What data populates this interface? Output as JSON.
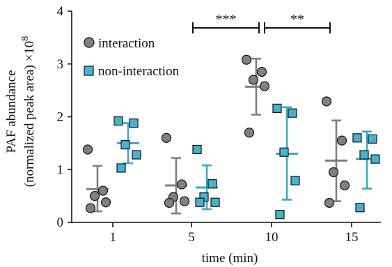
{
  "chart_data": {
    "type": "scatter",
    "xlabel": "time (min)",
    "ylabel_line1": "PAF abundance",
    "ylabel_line2": "(normalized peak area) ×10",
    "ylabel_exponent": "8",
    "ylim": [
      0,
      4
    ],
    "yticks": [
      "0",
      "1",
      "2",
      "3",
      "4"
    ],
    "categories": [
      "1",
      "5",
      "10",
      "15"
    ],
    "grid": false,
    "legend_position": "top-left",
    "colors": {
      "interaction": "#808080",
      "non_interaction": "#46b3cc",
      "error_interaction": "#7f7f7f",
      "error_non_interaction": "#3aa9c4"
    },
    "series": [
      {
        "name": "interaction",
        "marker": "circle",
        "groups": [
          {
            "category": "1",
            "mean": 0.63,
            "sd_low": 0.21,
            "sd_high": 1.07,
            "points": [
              1.38,
              0.6,
              0.5,
              0.38,
              0.27
            ]
          },
          {
            "category": "5",
            "mean": 0.7,
            "sd_low": 0.17,
            "sd_high": 1.22,
            "points": [
              1.6,
              0.72,
              0.48,
              0.4,
              0.37
            ]
          },
          {
            "category": "10",
            "mean": 2.57,
            "sd_low": 2.04,
            "sd_high": 3.1,
            "points": [
              3.08,
              2.85,
              2.7,
              2.58,
              1.7
            ]
          },
          {
            "category": "15",
            "mean": 1.17,
            "sd_low": 0.4,
            "sd_high": 1.93,
            "points": [
              2.29,
              1.55,
              0.95,
              0.7,
              0.37
            ]
          }
        ]
      },
      {
        "name": "non-interaction",
        "marker": "square",
        "groups": [
          {
            "category": "1",
            "mean": 1.5,
            "sd_low": 1.12,
            "sd_high": 1.88,
            "points": [
              1.92,
              1.88,
              1.47,
              1.28,
              1.03
            ]
          },
          {
            "category": "5",
            "mean": 0.66,
            "sd_low": 0.25,
            "sd_high": 1.08,
            "points": [
              1.38,
              0.73,
              0.48,
              0.38,
              0.38
            ]
          },
          {
            "category": "10",
            "mean": 1.3,
            "sd_low": 0.43,
            "sd_high": 2.18,
            "points": [
              2.16,
              2.07,
              1.33,
              0.79,
              0.15
            ]
          },
          {
            "category": "15",
            "mean": 1.2,
            "sd_low": 0.64,
            "sd_high": 1.72,
            "points": [
              1.6,
              1.58,
              1.28,
              1.2,
              0.28
            ]
          }
        ]
      }
    ],
    "annotations": [
      {
        "label": "***",
        "from_category": "5",
        "to_category": "10"
      },
      {
        "label": "**",
        "from_category": "10",
        "to_category": "15"
      }
    ]
  }
}
